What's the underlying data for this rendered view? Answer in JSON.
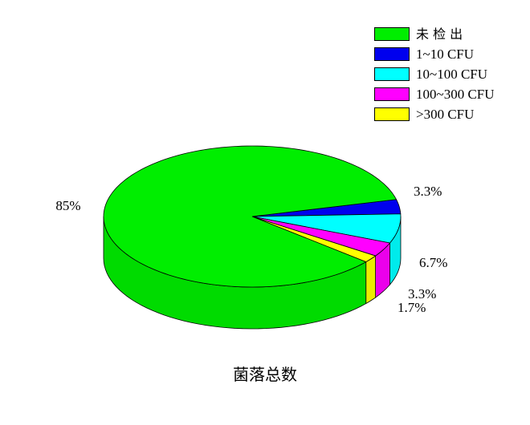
{
  "chart_data": {
    "type": "pie",
    "style": "3d",
    "title": "菌落总数",
    "slices": [
      {
        "label": "未 检 出",
        "value": 85,
        "value_label": "85%",
        "color": "#00ee00"
      },
      {
        "label": "1~10 CFU",
        "value": 3.3,
        "value_label": "3.3%",
        "color": "#0000ee"
      },
      {
        "label": "10~100 CFU",
        "value": 6.7,
        "value_label": "6.7%",
        "color": "#00ffff"
      },
      {
        "label": "100~300 CFU",
        "value": 3.3,
        "value_label": "3.3%",
        "color": "#ff00ff"
      },
      {
        "label": ">300 CFU",
        "value": 1.7,
        "value_label": "1.7%",
        "color": "#ffff00"
      }
    ],
    "legend_position": "top-right"
  }
}
